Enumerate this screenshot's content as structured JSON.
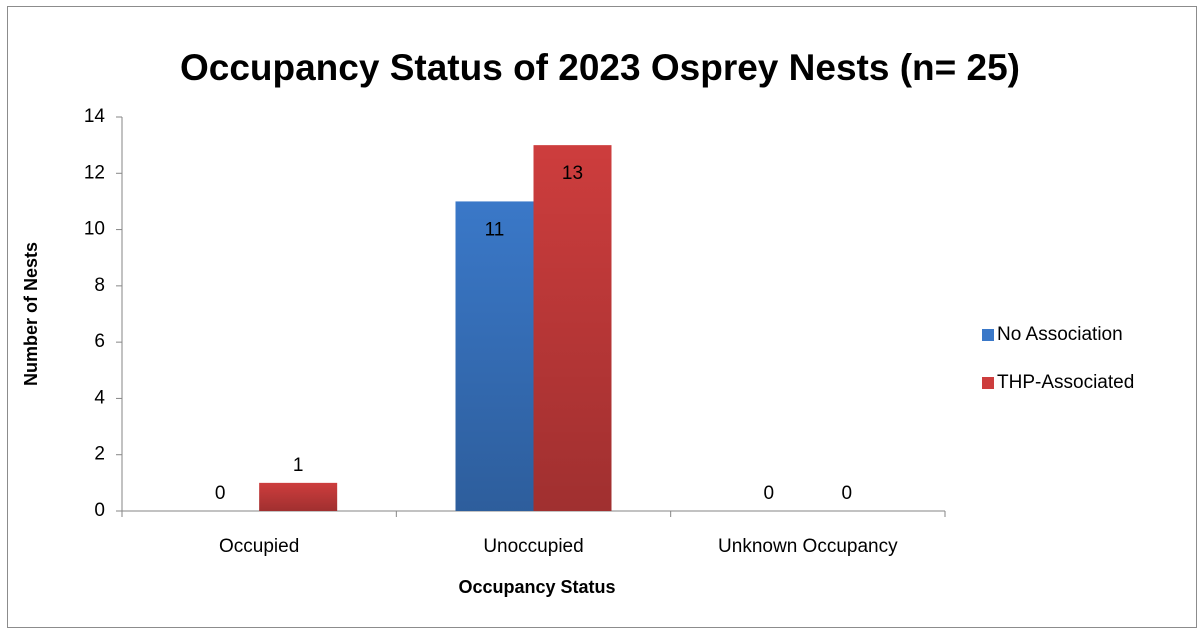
{
  "chart_data": {
    "type": "bar",
    "title": "Occupancy Status of 2023 Osprey Nests (n= 25)",
    "x_label": "Occupancy Status",
    "y_label": "Number of Nests",
    "categories": [
      "Occupied",
      "Unoccupied",
      "Unknown Occupancy"
    ],
    "series": [
      {
        "name": "No Association",
        "color": "#3a78c8",
        "values": [
          0,
          11,
          0
        ]
      },
      {
        "name": "THP-Associated",
        "color": "#cd3d3d",
        "values": [
          1,
          13,
          0
        ]
      }
    ],
    "ylim": [
      0,
      14
    ],
    "yticks": [
      0,
      2,
      4,
      6,
      8,
      10,
      12,
      14
    ],
    "legend": "right"
  }
}
